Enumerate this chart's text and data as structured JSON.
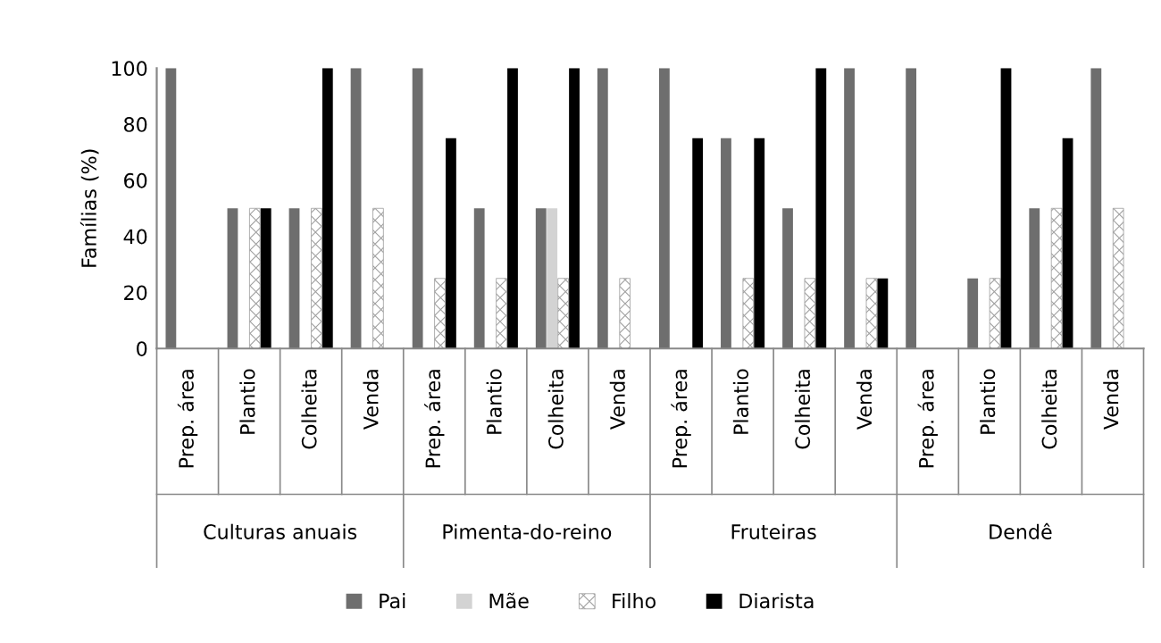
{
  "chart_data": {
    "type": "bar",
    "ylabel": "Famílias (%)",
    "categories": [
      "Prep. área",
      "Plantio",
      "Colheita",
      "Venda",
      "Prep. área",
      "Plantio",
      "Colheita",
      "Venda",
      "Prep. área",
      "Plantio",
      "Colheita",
      "Venda",
      "Prep. área",
      "Plantio",
      "Colheita",
      "Venda"
    ],
    "annotations": [
      "Culturas anuais",
      "Pimenta-do-reino",
      "Fruteiras",
      "Dendê"
    ],
    "series": [
      {
        "name": "Pai",
        "color": "#6e6e6e",
        "values": [
          100,
          50,
          50,
          100,
          100,
          50,
          50,
          100,
          100,
          75,
          50,
          100,
          100,
          25,
          50,
          100
        ]
      },
      {
        "name": "Mãe",
        "color": "#d3d3d3",
        "values": [
          null,
          null,
          null,
          null,
          null,
          null,
          50,
          null,
          null,
          null,
          null,
          null,
          null,
          null,
          null,
          null
        ]
      },
      {
        "name": "Filho",
        "color": "#a0a0a0",
        "values": [
          null,
          50,
          50,
          50,
          25,
          25,
          25,
          25,
          null,
          25,
          25,
          25,
          null,
          25,
          50,
          50
        ]
      },
      {
        "name": "Diarista",
        "color": "#000000",
        "values": [
          null,
          50,
          100,
          null,
          75,
          100,
          100,
          null,
          75,
          75,
          100,
          25,
          null,
          100,
          75,
          null
        ]
      }
    ],
    "ylim": [
      0,
      100
    ],
    "yticks": [
      0,
      20,
      40,
      60,
      80,
      100
    ],
    "grid": false,
    "legend": "bottom"
  }
}
